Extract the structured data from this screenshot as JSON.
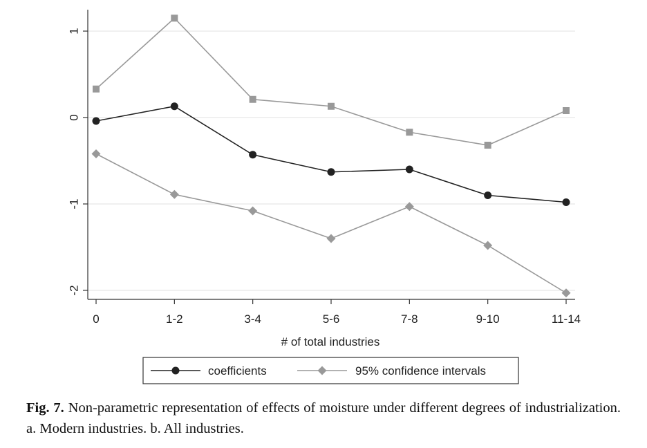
{
  "chart_data": {
    "type": "line",
    "categories": [
      "0",
      "1-2",
      "3-4",
      "5-6",
      "7-8",
      "9-10",
      "11-14"
    ],
    "series": [
      {
        "name": "coefficients",
        "marker": "circle",
        "color": "#222222",
        "values": [
          -0.04,
          0.13,
          -0.43,
          -0.63,
          -0.6,
          -0.9,
          -0.98
        ]
      },
      {
        "name": "95% confidence intervals",
        "role": "upper",
        "marker": "square",
        "color": "#999999",
        "values": [
          0.33,
          1.15,
          0.21,
          0.13,
          -0.17,
          -0.32,
          0.08
        ]
      },
      {
        "name": "95% confidence intervals",
        "role": "lower",
        "marker": "diamond",
        "color": "#999999",
        "values": [
          -0.42,
          -0.89,
          -1.08,
          -1.4,
          -1.03,
          -1.48,
          -2.03
        ]
      }
    ],
    "xlabel": "# of total industries",
    "ylabel": "",
    "ylim": [
      -2.1,
      1.25
    ],
    "yticks": [
      1,
      0,
      -1,
      -2
    ],
    "ytick_labels": [
      "1",
      "0",
      "-1",
      "-2"
    ],
    "grid": true,
    "legend": {
      "position": "bottom",
      "entries": [
        "coefficients",
        "95% confidence intervals"
      ]
    }
  },
  "caption": {
    "label": "Fig. 7.",
    "text": "Non-parametric representation of effects of moisture under different degrees of industrialization. a. Modern industries. b. All industries."
  }
}
